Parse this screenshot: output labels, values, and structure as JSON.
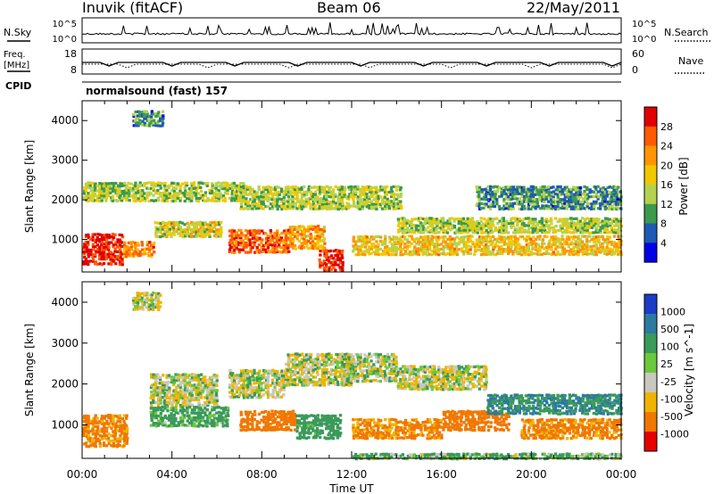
{
  "header": {
    "station": "Inuvik (fitACF)",
    "beam": "Beam 06",
    "date": "22/May/2011"
  },
  "noise_panel": {
    "left_label": "N.Sky",
    "right_label": "N.Search",
    "left_ticks": [
      "10^5",
      "10^0"
    ],
    "right_ticks": [
      "10^5",
      "10^0"
    ]
  },
  "freq_panel": {
    "left_label_line1": "Freq.",
    "left_label_line2": "[MHz]",
    "right_label": "Nave",
    "left_ticks": [
      "18",
      "8"
    ],
    "right_ticks": [
      "60",
      "0"
    ]
  },
  "cpid": {
    "label": "CPID",
    "value": "normalsound (fast) 157"
  },
  "x_axis": {
    "label": "Time UT",
    "ticks": [
      "00:00",
      "04:00",
      "08:00",
      "12:00",
      "16:00",
      "20:00",
      "00:00"
    ]
  },
  "chart_data": [
    {
      "type": "heatmap",
      "name": "power",
      "xlabel": "Time UT",
      "ylabel": "Slant Range [km]",
      "x_range_hours": [
        0,
        24
      ],
      "ylim": [
        180,
        4500
      ],
      "y_ticks": [
        "1000",
        "2000",
        "3000",
        "4000"
      ],
      "colorbar_label": "Power [dB]",
      "colorbar_ticks": [
        "28",
        "24",
        "20",
        "16",
        "12",
        "8",
        "4"
      ],
      "colorbar_colors": [
        "#e00000",
        "#ff5a00",
        "#ff9600",
        "#f0c800",
        "#b4d250",
        "#3c9a4a",
        "#1e5ab4",
        "#0000e6"
      ],
      "regions": [
        {
          "t": [
            0.0,
            1.8
          ],
          "r": [
            400,
            1200
          ],
          "level": 28
        },
        {
          "t": [
            1.8,
            3.2
          ],
          "r": [
            600,
            1000
          ],
          "level": 22
        },
        {
          "t": [
            2.2,
            3.6
          ],
          "r": [
            3900,
            4300
          ],
          "level": 10
        },
        {
          "t": [
            3.2,
            6.2
          ],
          "r": [
            1100,
            1500
          ],
          "level": 16
        },
        {
          "t": [
            0.0,
            7.2
          ],
          "r": [
            2000,
            2500
          ],
          "level": 14
        },
        {
          "t": [
            6.5,
            9.2
          ],
          "r": [
            700,
            1300
          ],
          "level": 24
        },
        {
          "t": [
            9.2,
            10.8
          ],
          "r": [
            800,
            1400
          ],
          "level": 20
        },
        {
          "t": [
            10.5,
            11.6
          ],
          "r": [
            250,
            800
          ],
          "level": 28
        },
        {
          "t": [
            7.0,
            14.2
          ],
          "r": [
            1800,
            2400
          ],
          "level": 14
        },
        {
          "t": [
            14.0,
            24.0
          ],
          "r": [
            1200,
            1600
          ],
          "level": 14
        },
        {
          "t": [
            12.0,
            24.0
          ],
          "r": [
            650,
            1150
          ],
          "level": 18
        },
        {
          "t": [
            17.5,
            24.0
          ],
          "r": [
            1800,
            2400
          ],
          "level": 10
        }
      ]
    },
    {
      "type": "heatmap",
      "name": "velocity",
      "xlabel": "Time UT",
      "ylabel": "Slant Range [km]",
      "x_range_hours": [
        0,
        24
      ],
      "ylim": [
        180,
        4500
      ],
      "y_ticks": [
        "1000",
        "2000",
        "3000",
        "4000"
      ],
      "colorbar_label": "Velocity [m s^-1]",
      "colorbar_ticks": [
        "1000",
        "500",
        "100",
        "25",
        "-25",
        "-100",
        "-500",
        "-1000"
      ],
      "colorbar_colors": [
        "#1a3cc8",
        "#2c7aa0",
        "#3a9a5a",
        "#6cc83c",
        "#c8c8be",
        "#f0b400",
        "#f07800",
        "#e60000"
      ],
      "regions": [
        {
          "t": [
            0.0,
            2.0
          ],
          "r": [
            500,
            1300
          ],
          "v": -150
        },
        {
          "t": [
            2.2,
            3.5
          ],
          "r": [
            3850,
            4300
          ],
          "v": 0
        },
        {
          "t": [
            3.0,
            6.0
          ],
          "r": [
            1500,
            2300
          ],
          "v": 0
        },
        {
          "t": [
            3.0,
            6.5
          ],
          "r": [
            1000,
            1500
          ],
          "v": 120
        },
        {
          "t": [
            6.5,
            9.0
          ],
          "r": [
            1700,
            2400
          ],
          "v": 0
        },
        {
          "t": [
            7.0,
            9.5
          ],
          "r": [
            900,
            1400
          ],
          "v": -200
        },
        {
          "t": [
            9.0,
            12.0
          ],
          "r": [
            2000,
            2800
          ],
          "v": 0
        },
        {
          "t": [
            9.5,
            11.5
          ],
          "r": [
            700,
            1300
          ],
          "v": 150
        },
        {
          "t": [
            11.5,
            14.0
          ],
          "r": [
            2100,
            2800
          ],
          "v": 0
        },
        {
          "t": [
            12.0,
            16.0
          ],
          "r": [
            700,
            1200
          ],
          "v": -150
        },
        {
          "t": [
            14.0,
            18.0
          ],
          "r": [
            1900,
            2500
          ],
          "v": 0
        },
        {
          "t": [
            16.0,
            19.0
          ],
          "r": [
            900,
            1400
          ],
          "v": -200
        },
        {
          "t": [
            18.0,
            24.0
          ],
          "r": [
            1300,
            1800
          ],
          "v": 300
        },
        {
          "t": [
            19.5,
            24.0
          ],
          "r": [
            700,
            1200
          ],
          "v": -150
        },
        {
          "t": [
            12.0,
            24.0
          ],
          "r": [
            200,
            350
          ],
          "v": 60
        }
      ]
    }
  ]
}
